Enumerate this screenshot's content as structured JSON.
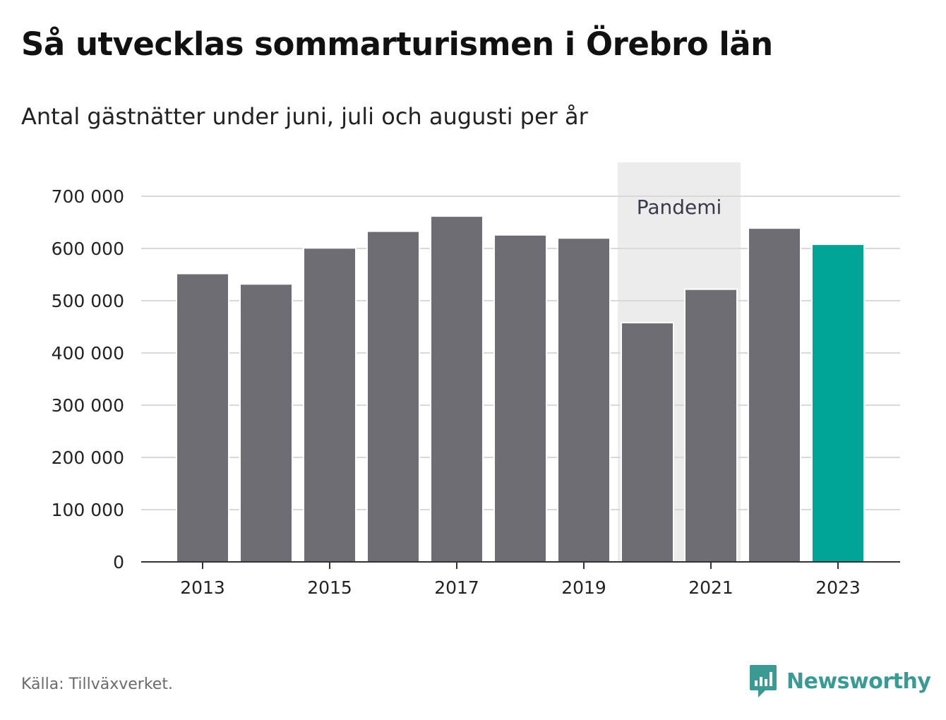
{
  "title": "Så utvecklas sommarturismen i Örebro län",
  "subtitle": "Antal gästnätter under juni, juli och augusti per år",
  "source": "Källa: Tillväxverket.",
  "brand": {
    "name": "Newsworthy",
    "icon": "newsworthy-logo-icon",
    "color": "#3c9a94"
  },
  "chart_data": {
    "type": "bar",
    "categories": [
      "2013",
      "2014",
      "2015",
      "2016",
      "2017",
      "2018",
      "2019",
      "2020",
      "2021",
      "2022",
      "2023"
    ],
    "values": [
      552000,
      532000,
      601000,
      633000,
      662000,
      626000,
      620000,
      458000,
      522000,
      639000,
      608000
    ],
    "x_tick_labels": [
      "2013",
      "2015",
      "2017",
      "2019",
      "2021",
      "2023"
    ],
    "y_ticks": [
      0,
      100000,
      200000,
      300000,
      400000,
      500000,
      600000,
      700000
    ],
    "y_tick_labels": [
      "0",
      "100 000",
      "200 000",
      "300 000",
      "400 000",
      "500 000",
      "600 000",
      "700 000"
    ],
    "ylim": [
      0,
      700000
    ],
    "grid": true,
    "legend": "none",
    "colors": {
      "default": "#6e6d73",
      "highlight": "#00a598",
      "highlight_category": "2023",
      "band": "#ececec",
      "gridline": "#d9d9d9",
      "axis": "#333333"
    },
    "annotations": [
      {
        "type": "band",
        "label": "Pandemi",
        "from": "2020",
        "to": "2021"
      }
    ]
  }
}
